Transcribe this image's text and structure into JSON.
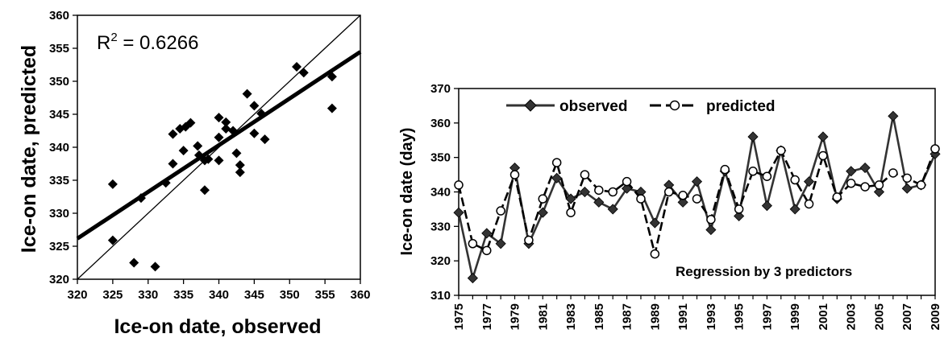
{
  "chart_data": [
    {
      "type": "scatter",
      "xlabel": "Ice-on date, observed",
      "ylabel": "Ice-on date, predicted",
      "xlim": [
        320,
        360
      ],
      "ylim": [
        320,
        360
      ],
      "xticks": [
        "320",
        "325",
        "330",
        "335",
        "340",
        "345",
        "350",
        "355",
        "360"
      ],
      "yticks": [
        "320",
        "325",
        "330",
        "335",
        "340",
        "345",
        "350",
        "355",
        "360"
      ],
      "annotation": {
        "prefix": "R",
        "sup": "2",
        "suffix": " = 0.6266"
      },
      "points": [
        [
          325,
          334.4
        ],
        [
          325,
          325.9
        ],
        [
          328,
          322.5
        ],
        [
          329,
          332.3
        ],
        [
          331,
          321.9
        ],
        [
          332.5,
          334.6
        ],
        [
          333.5,
          337.5
        ],
        [
          333.5,
          342
        ],
        [
          334.5,
          342.8
        ],
        [
          335,
          339.5
        ],
        [
          335.3,
          343.1
        ],
        [
          336,
          343.7
        ],
        [
          337,
          340.2
        ],
        [
          337.2,
          338.8
        ],
        [
          338,
          338
        ],
        [
          338,
          333.5
        ],
        [
          338.5,
          338.2
        ],
        [
          340,
          344.5
        ],
        [
          340,
          341.5
        ],
        [
          340,
          338
        ],
        [
          341,
          343.8
        ],
        [
          341,
          342.8
        ],
        [
          342,
          342.5
        ],
        [
          342.5,
          339.1
        ],
        [
          343,
          337.3
        ],
        [
          343,
          336.2
        ],
        [
          344,
          348.1
        ],
        [
          345,
          346.3
        ],
        [
          345,
          342.1
        ],
        [
          346,
          345.1
        ],
        [
          346.5,
          341.2
        ],
        [
          351,
          352.2
        ],
        [
          352,
          351.3
        ],
        [
          356,
          350.7
        ],
        [
          356,
          345.9
        ]
      ],
      "grid": false,
      "legend": "none"
    },
    {
      "type": "line",
      "ylabel": "Ice-on date (day)",
      "ylim": [
        310,
        370
      ],
      "yticks": [
        "310",
        "320",
        "330",
        "340",
        "350",
        "360",
        "370"
      ],
      "xlim": [
        1975,
        2009
      ],
      "xticks": [
        "1975",
        "1977",
        "1979",
        "1981",
        "1983",
        "1985",
        "1987",
        "1989",
        "1991",
        "1993",
        "1995",
        "1997",
        "1999",
        "2001",
        "2003",
        "2005",
        "2007",
        "2009"
      ],
      "annotation": "Regression by 3 predictors",
      "legend": "top-left",
      "grid": false,
      "x": [
        1975,
        1976,
        1977,
        1978,
        1979,
        1980,
        1981,
        1982,
        1983,
        1984,
        1985,
        1986,
        1987,
        1988,
        1989,
        1990,
        1991,
        1992,
        1993,
        1994,
        1995,
        1996,
        1997,
        1998,
        1999,
        2000,
        2001,
        2002,
        2003,
        2004,
        2005,
        2006,
        2007,
        2008,
        2009
      ],
      "series": [
        {
          "name": "observed",
          "values": [
            334,
            315,
            328,
            325,
            347,
            325,
            334,
            344,
            338,
            340,
            337,
            335,
            341,
            340,
            331,
            342,
            337,
            343,
            329,
            346,
            333,
            356,
            336,
            352,
            335,
            343,
            356,
            338,
            346,
            347,
            340,
            362,
            341,
            342,
            351
          ]
        },
        {
          "name": "predicted",
          "values": [
            342,
            325,
            323,
            334.5,
            345,
            326,
            338,
            348.5,
            334,
            345,
            340.5,
            340,
            343,
            338,
            322,
            340,
            339,
            338,
            332,
            346.5,
            335,
            346,
            344.5,
            352,
            343.5,
            336.5,
            350.5,
            338.5,
            342.5,
            341.5,
            342,
            345.5,
            344,
            342,
            352.5
          ]
        }
      ]
    }
  ]
}
